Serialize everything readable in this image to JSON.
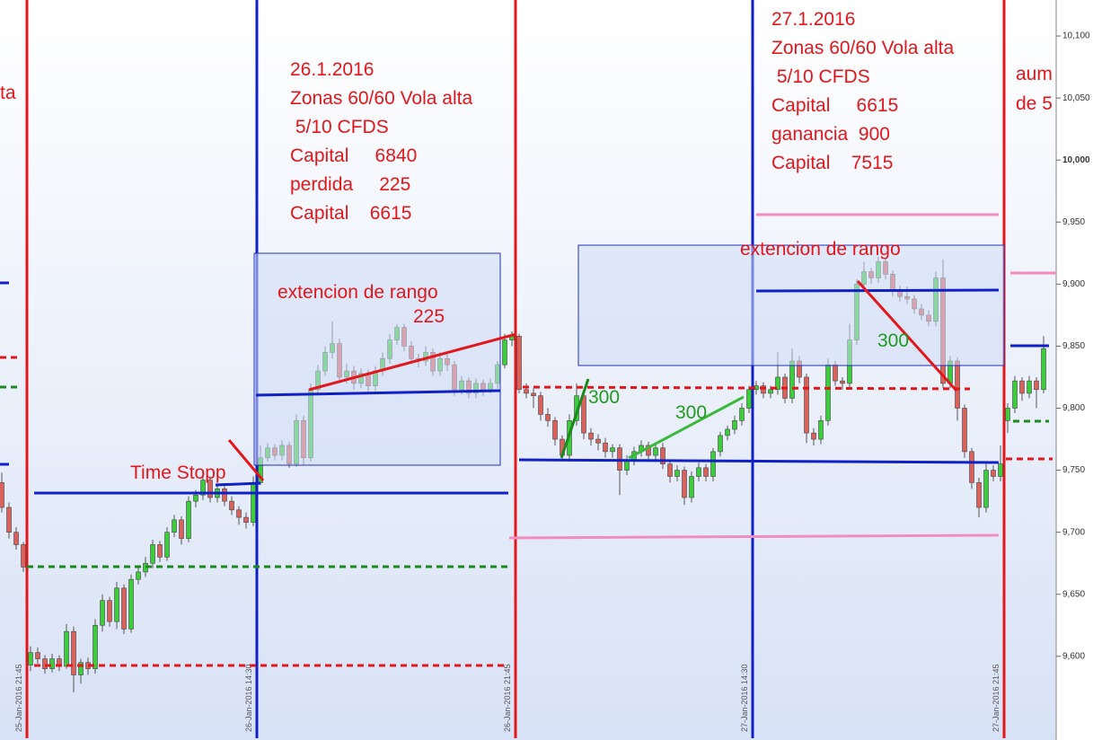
{
  "chart_data": {
    "type": "candlestick",
    "categories": [
      null,
      null,
      null,
      "25-Jan-2016 21:45",
      null,
      null,
      null,
      null,
      null,
      null,
      null,
      null,
      null,
      null,
      null,
      null,
      null,
      null,
      null,
      null,
      null,
      null,
      null,
      null,
      null,
      null,
      null,
      null,
      null,
      null,
      null,
      null,
      null,
      null,
      null,
      "26-Jan-2016 14:30",
      null,
      null,
      null,
      null,
      null,
      null,
      null,
      null,
      null,
      null,
      null,
      null,
      null,
      null,
      null,
      null,
      null,
      null,
      null,
      null,
      null,
      null,
      null,
      null,
      null,
      null,
      null,
      null,
      null,
      null,
      null,
      null,
      null,
      null,
      null,
      "26-Jan-2016 21:45",
      null,
      null,
      null,
      null,
      null,
      null,
      null,
      null,
      null,
      null,
      null,
      null,
      null,
      null,
      null,
      null,
      null,
      null,
      null,
      null,
      null,
      null,
      null,
      null,
      null,
      null,
      null,
      null,
      null,
      null,
      null,
      null,
      "27-Jan-2016 14:30",
      null,
      null,
      null,
      null,
      null,
      null,
      null,
      null,
      null,
      null,
      null,
      null,
      null,
      null,
      null,
      null,
      null,
      null,
      null,
      null,
      null,
      null,
      null,
      null,
      null,
      null,
      null,
      null,
      null,
      null,
      null,
      null,
      null,
      null,
      "27-Jan-2016 21:45",
      null,
      null,
      null,
      null,
      null,
      null
    ],
    "ohlc": [
      [
        9740,
        9748,
        9716,
        9720
      ],
      [
        9720,
        9724,
        9695,
        9700
      ],
      [
        9700,
        9704,
        9686,
        9690
      ],
      [
        9690,
        9692,
        9668,
        9672
      ],
      [
        9593,
        9608,
        9588,
        9603
      ],
      [
        9603,
        9607,
        9594,
        9598
      ],
      [
        9598,
        9601,
        9586,
        9590
      ],
      [
        9590,
        9602,
        9587,
        9598
      ],
      [
        9598,
        9601,
        9588,
        9592
      ],
      [
        9592,
        9626,
        9590,
        9620
      ],
      [
        9620,
        9624,
        9571,
        9585
      ],
      [
        9585,
        9598,
        9578,
        9595
      ],
      [
        9595,
        9599,
        9585,
        9590
      ],
      [
        9590,
        9630,
        9586,
        9625
      ],
      [
        9625,
        9650,
        9620,
        9645
      ],
      [
        9645,
        9648,
        9624,
        9628
      ],
      [
        9628,
        9660,
        9622,
        9655
      ],
      [
        9655,
        9658,
        9618,
        9622
      ],
      [
        9622,
        9666,
        9619,
        9662
      ],
      [
        9662,
        9672,
        9658,
        9668
      ],
      [
        9668,
        9680,
        9664,
        9675
      ],
      [
        9675,
        9694,
        9671,
        9690
      ],
      [
        9690,
        9693,
        9676,
        9680
      ],
      [
        9680,
        9704,
        9677,
        9700
      ],
      [
        9700,
        9714,
        9696,
        9710
      ],
      [
        9710,
        9713,
        9690,
        9695
      ],
      [
        9695,
        9729,
        9692,
        9725
      ],
      [
        9725,
        9734,
        9720,
        9730
      ],
      [
        9730,
        9746,
        9726,
        9742
      ],
      [
        9742,
        9745,
        9724,
        9728
      ],
      [
        9728,
        9739,
        9724,
        9735
      ],
      [
        9735,
        9738,
        9721,
        9725
      ],
      [
        9725,
        9729,
        9714,
        9718
      ],
      [
        9718,
        9721,
        9706,
        9712
      ],
      [
        9712,
        9716,
        9703,
        9708
      ],
      [
        9708,
        9745,
        9705,
        9740
      ],
      [
        9740,
        9770,
        9738,
        9760
      ],
      [
        9760,
        9772,
        9757,
        9768
      ],
      [
        9768,
        9771,
        9758,
        9762
      ],
      [
        9762,
        9774,
        9758,
        9770
      ],
      [
        9770,
        9773,
        9752,
        9755
      ],
      [
        9755,
        9795,
        9753,
        9790
      ],
      [
        9790,
        9794,
        9754,
        9760
      ],
      [
        9760,
        9820,
        9757,
        9815
      ],
      [
        9815,
        9835,
        9812,
        9830
      ],
      [
        9830,
        9850,
        9826,
        9845
      ],
      [
        9845,
        9870,
        9840,
        9852
      ],
      [
        9852,
        9856,
        9820,
        9825
      ],
      [
        9825,
        9836,
        9820,
        9830
      ],
      [
        9830,
        9834,
        9815,
        9820
      ],
      [
        9820,
        9832,
        9816,
        9828
      ],
      [
        9828,
        9831,
        9812,
        9818
      ],
      [
        9818,
        9834,
        9814,
        9830
      ],
      [
        9830,
        9845,
        9826,
        9840
      ],
      [
        9840,
        9860,
        9836,
        9855
      ],
      [
        9855,
        9868,
        9851,
        9865
      ],
      [
        9865,
        9868,
        9846,
        9850
      ],
      [
        9850,
        9854,
        9836,
        9840
      ],
      [
        9840,
        9844,
        9833,
        9838
      ],
      [
        9838,
        9850,
        9834,
        9845
      ],
      [
        9845,
        9848,
        9826,
        9830
      ],
      [
        9830,
        9845,
        9826,
        9840
      ],
      [
        9840,
        9844,
        9830,
        9835
      ],
      [
        9835,
        9838,
        9810,
        9815
      ],
      [
        9815,
        9826,
        9811,
        9822
      ],
      [
        9822,
        9825,
        9808,
        9812
      ],
      [
        9812,
        9824,
        9808,
        9820
      ],
      [
        9820,
        9823,
        9810,
        9815
      ],
      [
        9815,
        9824,
        9812,
        9820
      ],
      [
        9820,
        9838,
        9816,
        9835
      ],
      [
        9835,
        9860,
        9832,
        9855
      ],
      [
        9855,
        9862,
        9850,
        9858
      ],
      [
        9858,
        9860,
        9812,
        9815
      ],
      [
        9815,
        9820,
        9808,
        9812
      ],
      [
        9812,
        9816,
        9800,
        9810
      ],
      [
        9810,
        9813,
        9790,
        9795
      ],
      [
        9795,
        9800,
        9785,
        9790
      ],
      [
        9790,
        9793,
        9770,
        9775
      ],
      [
        9775,
        9778,
        9758,
        9762
      ],
      [
        9762,
        9795,
        9758,
        9790
      ],
      [
        9790,
        9820,
        9786,
        9810
      ],
      [
        9810,
        9814,
        9775,
        9780
      ],
      [
        9780,
        9784,
        9770,
        9775
      ],
      [
        9775,
        9779,
        9766,
        9772
      ],
      [
        9772,
        9776,
        9760,
        9765
      ],
      [
        9765,
        9771,
        9760,
        9768
      ],
      [
        9768,
        9771,
        9730,
        9750
      ],
      [
        9750,
        9762,
        9746,
        9758
      ],
      [
        9758,
        9769,
        9754,
        9765
      ],
      [
        9765,
        9774,
        9761,
        9770
      ],
      [
        9770,
        9773,
        9758,
        9762
      ],
      [
        9762,
        9771,
        9758,
        9768
      ],
      [
        9768,
        9772,
        9751,
        9755
      ],
      [
        9755,
        9758,
        9740,
        9745
      ],
      [
        9745,
        9754,
        9741,
        9750
      ],
      [
        9750,
        9753,
        9722,
        9728
      ],
      [
        9728,
        9749,
        9724,
        9745
      ],
      [
        9745,
        9756,
        9741,
        9752
      ],
      [
        9752,
        9755,
        9741,
        9745
      ],
      [
        9745,
        9768,
        9741,
        9765
      ],
      [
        9765,
        9781,
        9761,
        9778
      ],
      [
        9778,
        9786,
        9774,
        9783
      ],
      [
        9783,
        9794,
        9779,
        9790
      ],
      [
        9790,
        9804,
        9786,
        9800
      ],
      [
        9800,
        9818,
        9796,
        9815
      ],
      [
        9815,
        9822,
        9811,
        9818
      ],
      [
        9818,
        9821,
        9808,
        9812
      ],
      [
        9812,
        9818,
        9808,
        9815
      ],
      [
        9815,
        9845,
        9811,
        9825
      ],
      [
        9825,
        9828,
        9804,
        9808
      ],
      [
        9808,
        9848,
        9804,
        9838
      ],
      [
        9838,
        9842,
        9820,
        9825
      ],
      [
        9825,
        9828,
        9772,
        9780
      ],
      [
        9780,
        9784,
        9770,
        9775
      ],
      [
        9775,
        9794,
        9771,
        9790
      ],
      [
        9790,
        9840,
        9786,
        9835
      ],
      [
        9835,
        9838,
        9818,
        9822
      ],
      [
        9822,
        9825,
        9815,
        9820
      ],
      [
        9820,
        9868,
        9816,
        9855
      ],
      [
        9855,
        9904,
        9851,
        9900
      ],
      [
        9900,
        9918,
        9896,
        9910
      ],
      [
        9910,
        9913,
        9900,
        9905
      ],
      [
        9905,
        9922,
        9901,
        9918
      ],
      [
        9918,
        9921,
        9904,
        9908
      ],
      [
        9908,
        9911,
        9890,
        9895
      ],
      [
        9895,
        9899,
        9886,
        9890
      ],
      [
        9890,
        9898,
        9884,
        9888
      ],
      [
        9888,
        9891,
        9876,
        9880
      ],
      [
        9880,
        9884,
        9871,
        9875
      ],
      [
        9875,
        9879,
        9866,
        9870
      ],
      [
        9870,
        9910,
        9866,
        9905
      ],
      [
        9905,
        9920,
        9816,
        9820
      ],
      [
        9820,
        9842,
        9816,
        9838
      ],
      [
        9838,
        9841,
        9790,
        9800
      ],
      [
        9800,
        9803,
        9760,
        9765
      ],
      [
        9765,
        9768,
        9735,
        9740
      ],
      [
        9740,
        9744,
        9712,
        9720
      ],
      [
        9720,
        9755,
        9716,
        9750
      ],
      [
        9750,
        9754,
        9741,
        9745
      ],
      [
        9745,
        9770,
        9741,
        9755
      ],
      [
        9790,
        9804,
        9780,
        9800
      ],
      [
        9800,
        9826,
        9796,
        9822
      ],
      [
        9822,
        9825,
        9806,
        9812
      ],
      [
        9812,
        9826,
        9808,
        9822
      ],
      [
        9822,
        9825,
        9800,
        9815
      ],
      [
        9815,
        9858,
        9812,
        9848
      ]
    ],
    "up_color": "#3ccc3c",
    "down_color": "#d9625c",
    "ylim": [
      9534,
      10129
    ],
    "yticks": [
      {
        "value": 9600,
        "label": "9,600"
      },
      {
        "value": 9650,
        "label": "9,650"
      },
      {
        "value": 9700,
        "label": "9,700"
      },
      {
        "value": 9750,
        "label": "9,750"
      },
      {
        "value": 9800,
        "label": "9,800"
      },
      {
        "value": 9850,
        "label": "9,850"
      },
      {
        "value": 9900,
        "label": "9,900"
      },
      {
        "value": 9950,
        "label": "9,950"
      },
      {
        "value": 10000,
        "label": "10,000"
      },
      {
        "value": 10050,
        "label": "10,050"
      },
      {
        "value": 10100,
        "label": "10,100"
      }
    ],
    "annotations": [
      "ta",
      "26.1.2016",
      "Zonas 60/60 Vola alta",
      " 5/10 CFDS",
      "Capital     6840",
      "perdida     225",
      "Capital    6615",
      "extencion de rango",
      "225",
      "Time Stopp",
      "300",
      "300",
      "27.1.2016",
      "Zonas 60/60 Vola alta",
      " 5/10 CFDS",
      "Capital     6615",
      "ganancia  900",
      "Capital    7515",
      "extencion de rango",
      "300",
      "aum",
      "de 5"
    ]
  }
}
